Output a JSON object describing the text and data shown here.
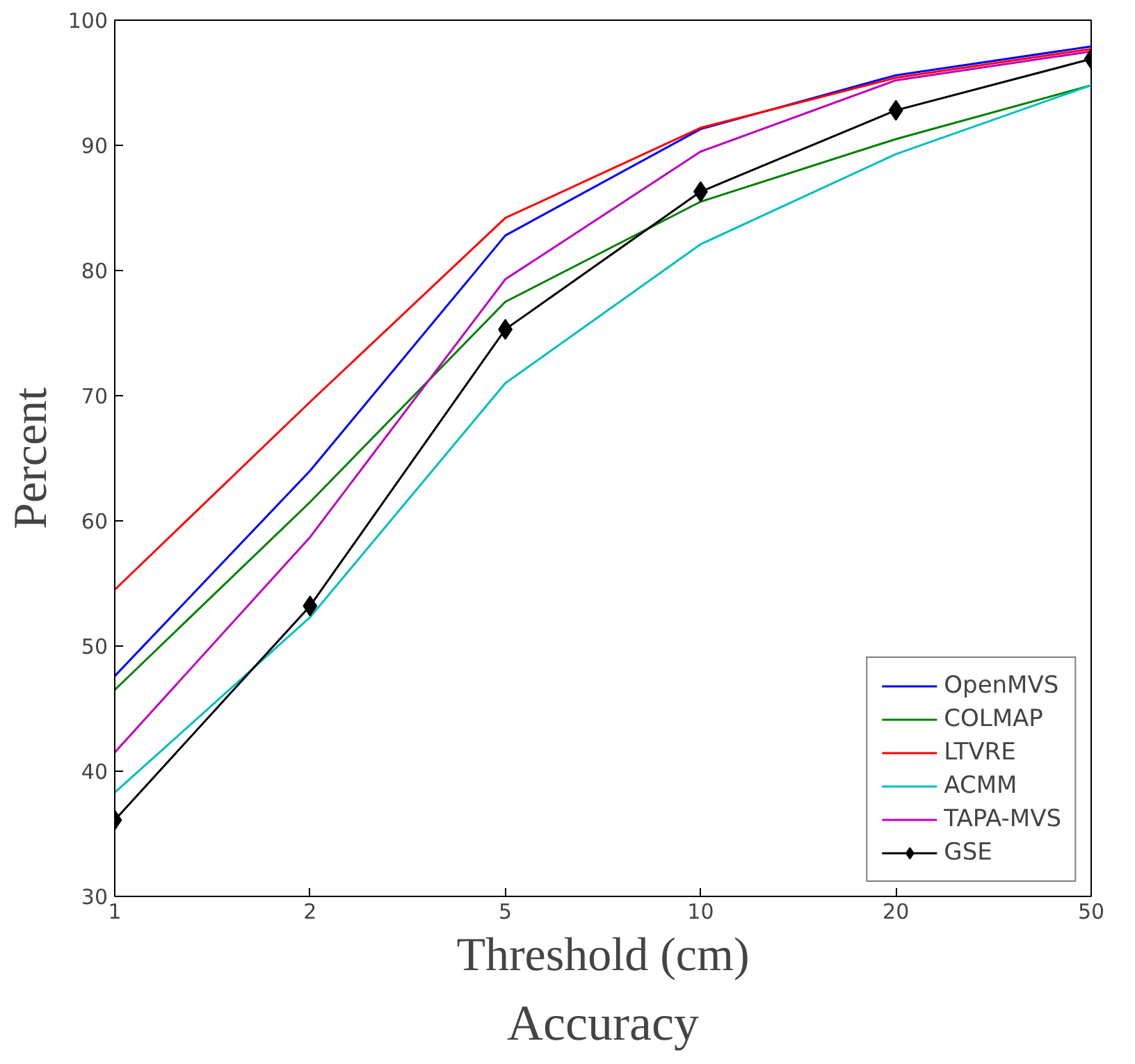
{
  "chart_data": {
    "type": "line",
    "title": "Accuracy",
    "xlabel": "Threshold (cm)",
    "ylabel": "Percent",
    "categories": [
      "1",
      "2",
      "5",
      "10",
      "20",
      "50"
    ],
    "ylim": [
      30,
      100
    ],
    "yticks": [
      30,
      40,
      50,
      60,
      70,
      80,
      90,
      100
    ],
    "grid": false,
    "legend": "bottom right",
    "line_style": "solid",
    "series": [
      {
        "name": "OpenMVS",
        "color": "#0000ff",
        "marker": "none",
        "values": [
          47.6,
          64.0,
          82.8,
          91.3,
          95.6,
          97.9
        ]
      },
      {
        "name": "COLMAP",
        "color": "#008000",
        "marker": "none",
        "values": [
          46.5,
          61.5,
          77.5,
          85.5,
          90.5,
          94.8
        ]
      },
      {
        "name": "LTVRE",
        "color": "#ff0000",
        "marker": "none",
        "values": [
          54.5,
          69.5,
          84.2,
          91.4,
          95.4,
          97.7
        ]
      },
      {
        "name": "ACMM",
        "color": "#00bfbf",
        "marker": "none",
        "values": [
          38.3,
          52.3,
          71.0,
          82.1,
          89.3,
          94.8
        ]
      },
      {
        "name": "TAPA-MVS",
        "color": "#bf00bf",
        "marker": "none",
        "values": [
          41.5,
          58.7,
          79.3,
          89.5,
          95.2,
          97.5
        ]
      },
      {
        "name": "GSE",
        "color": "#000000",
        "marker": "diamond",
        "values": [
          36.1,
          53.2,
          75.3,
          86.3,
          92.8,
          96.9
        ]
      }
    ]
  }
}
